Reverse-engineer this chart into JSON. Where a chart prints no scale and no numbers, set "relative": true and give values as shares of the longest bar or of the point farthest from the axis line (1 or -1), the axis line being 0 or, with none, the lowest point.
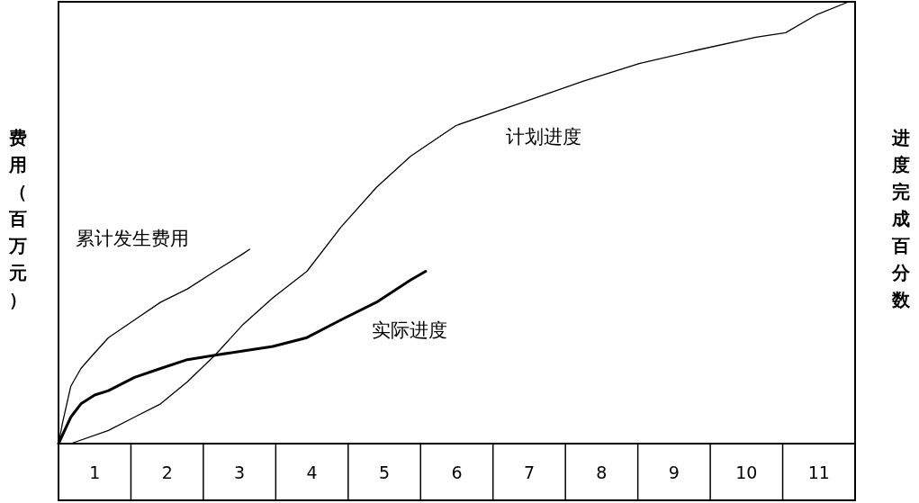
{
  "chart_data": {
    "type": "line",
    "relative": true,
    "ylabel": "费用（百万元）",
    "y2label": "进度完成百分数",
    "xlim": [
      0,
      11
    ],
    "xticks": [
      {
        "value": 0.5,
        "label": "1"
      },
      {
        "value": 1.5,
        "label": "2"
      },
      {
        "value": 2.5,
        "label": "3"
      },
      {
        "value": 3.5,
        "label": "4"
      },
      {
        "value": 4.5,
        "label": "5"
      },
      {
        "value": 5.5,
        "label": "6"
      },
      {
        "value": 6.5,
        "label": "7"
      },
      {
        "value": 7.5,
        "label": "8"
      },
      {
        "value": 8.5,
        "label": "9"
      },
      {
        "value": 9.5,
        "label": "10"
      },
      {
        "value": 10.5,
        "label": "11"
      }
    ],
    "series": [
      {
        "name": "累计发生费用",
        "color": "#000000",
        "x": [
          0,
          0.06,
          0.17,
          0.31,
          0.47,
          0.69,
          1.05,
          1.41,
          1.78,
          2.16,
          2.55,
          2.64
        ],
        "values": [
          0,
          0.05,
          0.13,
          0.17,
          0.2,
          0.24,
          0.28,
          0.32,
          0.35,
          0.39,
          0.43,
          0.44
        ]
      },
      {
        "name": "计划进度",
        "color": "#000000",
        "x": [
          0,
          0.17,
          0.69,
          1.05,
          1.41,
          1.78,
          2.16,
          2.55,
          2.96,
          3.43,
          3.9,
          4.39,
          4.86,
          5.31,
          5.49,
          6.37,
          7.24,
          8.02,
          8.8,
          9.63,
          10.04,
          10.46,
          10.91
        ],
        "values": [
          0,
          0,
          0.03,
          0.06,
          0.09,
          0.14,
          0.2,
          0.27,
          0.33,
          0.39,
          0.49,
          0.58,
          0.65,
          0.7,
          0.72,
          0.77,
          0.82,
          0.86,
          0.89,
          0.92,
          0.93,
          0.97,
          1
        ]
      },
      {
        "name": "实际进度",
        "color": "#000000",
        "x": [
          0,
          0.17,
          0.31,
          0.5,
          0.69,
          1.05,
          1.41,
          1.78,
          2.16,
          2.55,
          2.96,
          3.43,
          3.9,
          4.39,
          4.86,
          5.07
        ],
        "values": [
          0,
          0.06,
          0.09,
          0.11,
          0.12,
          0.15,
          0.17,
          0.19,
          0.2,
          0.21,
          0.22,
          0.24,
          0.28,
          0.32,
          0.37,
          0.39
        ]
      }
    ]
  }
}
